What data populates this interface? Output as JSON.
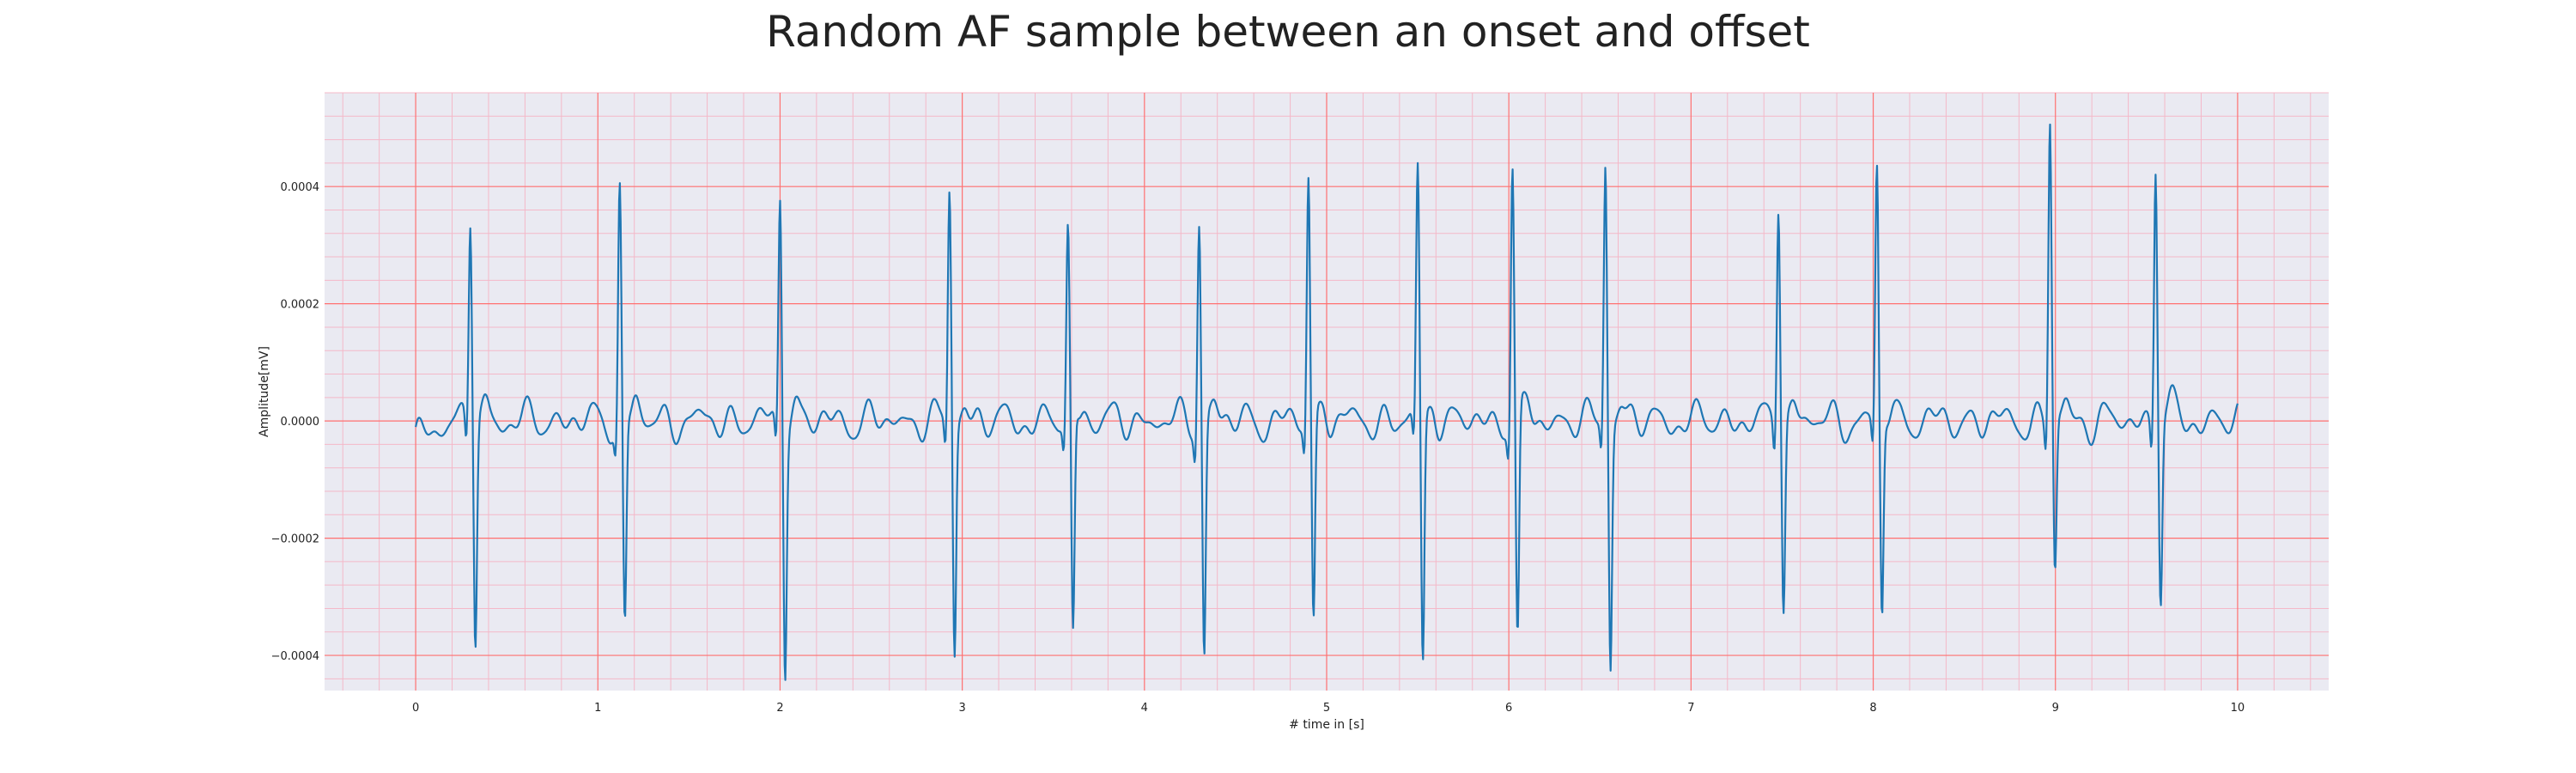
{
  "chart_data": {
    "type": "line",
    "title": "Random AF sample between an onset and offset",
    "xlabel": "# time in [s]",
    "ylabel": "Amplitude[mV]",
    "xlim": [
      -0.5,
      10.5
    ],
    "ylim": [
      -0.00046,
      0.00056
    ],
    "xticks": [
      0,
      1,
      2,
      3,
      4,
      5,
      6,
      7,
      8,
      9,
      10
    ],
    "xtick_labels": [
      "0",
      "1",
      "2",
      "3",
      "4",
      "5",
      "6",
      "7",
      "8",
      "9",
      "10"
    ],
    "yticks": [
      -0.0004,
      -0.0002,
      0.0,
      0.0002,
      0.0004
    ],
    "ytick_labels": [
      "−0.0004",
      "−0.0002",
      "0.0000",
      "0.0002",
      "0.0004"
    ],
    "grid": true,
    "minor_grid": true,
    "background_color": "#eaeaf2",
    "major_grid_color": "#ff7070",
    "minor_grid_color": "#f4b8c8",
    "series": [
      {
        "color": "#1f77b4",
        "x_range": [
          0,
          10
        ],
        "baseline_start": -4e-05,
        "beats": [
          {
            "t": 0.3,
            "r": 0.00035,
            "s": -0.00037
          },
          {
            "t": 1.12,
            "r": 0.0004,
            "s": -0.00035
          },
          {
            "t": 2.0,
            "r": 0.00039,
            "s": -0.00041
          },
          {
            "t": 2.93,
            "r": 0.0004,
            "s": -0.00039
          },
          {
            "t": 3.58,
            "r": 0.00032,
            "s": -0.00038
          },
          {
            "t": 4.3,
            "r": 0.00035,
            "s": -0.0004
          },
          {
            "t": 4.9,
            "r": 0.00042,
            "s": -0.00035
          },
          {
            "t": 5.5,
            "r": 0.00043,
            "s": -0.00042
          },
          {
            "t": 6.02,
            "r": 0.00044,
            "s": -0.00039
          },
          {
            "t": 6.53,
            "r": 0.00045,
            "s": -0.00041
          },
          {
            "t": 7.48,
            "r": 0.00039,
            "s": -0.00031
          },
          {
            "t": 8.02,
            "r": 0.00043,
            "s": -0.00034
          },
          {
            "t": 8.97,
            "r": 0.00052,
            "s": -0.00026
          },
          {
            "t": 9.55,
            "r": 0.00045,
            "s": -0.0003
          }
        ]
      }
    ]
  }
}
